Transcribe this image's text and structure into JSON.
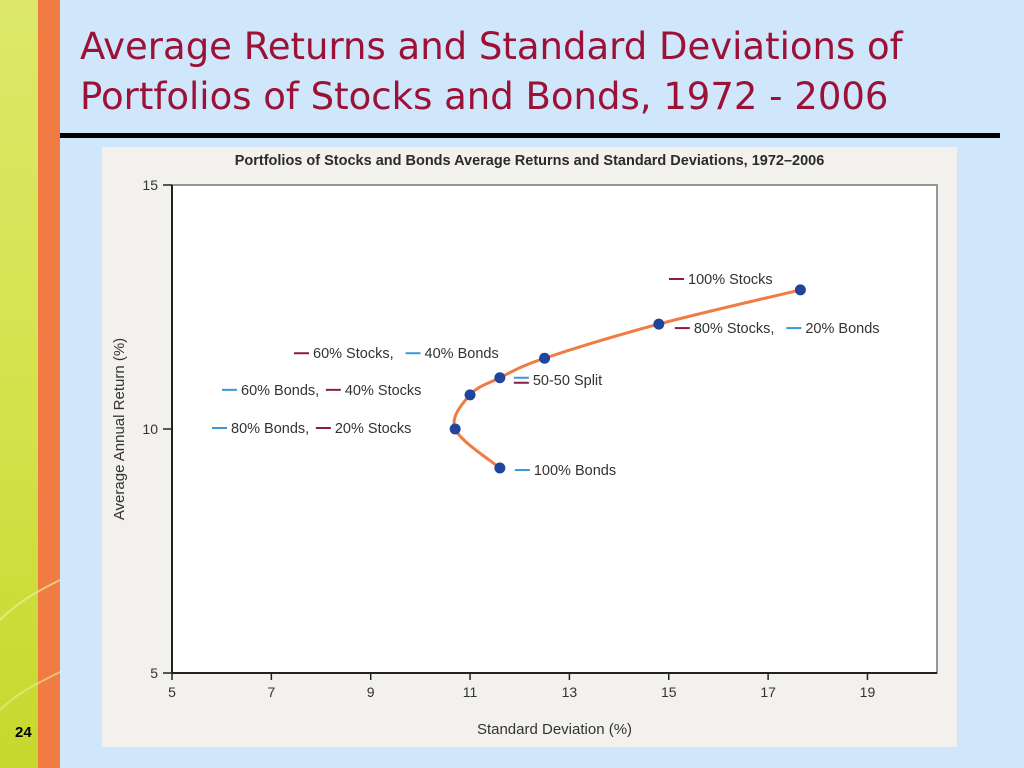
{
  "slide": {
    "title_line1": "Average Returns and Standard Deviations of",
    "title_line2": "Portfolios of Stocks and Bonds, 1972 - 2006",
    "page_number": "24"
  },
  "colors": {
    "title": "#9b1236",
    "curve": "#f07b43",
    "point": "#21459b",
    "stock_mark": "#8e1a4a",
    "bond_mark": "#3c98d4"
  },
  "chart_data": {
    "type": "line",
    "title": "Portfolios of Stocks and Bonds Average Returns and Standard Deviations, 1972–2006",
    "xlabel": "Standard Deviation (%)",
    "ylabel": "Average Annual Return (%)",
    "xlim": [
      5,
      20.4
    ],
    "ylim": [
      5,
      15
    ],
    "xticks": [
      5,
      7,
      9,
      11,
      13,
      15,
      17,
      19
    ],
    "yticks": [
      5,
      10,
      15
    ],
    "grid": false,
    "series": [
      {
        "points": [
          {
            "x": 11.6,
            "y": 9.2,
            "label": [
              "100% Bonds"
            ]
          },
          {
            "x": 10.7,
            "y": 10.0,
            "label": [
              "80% Bonds,",
              "20% Stocks"
            ]
          },
          {
            "x": 11.0,
            "y": 10.7,
            "label": [
              "60% Bonds,",
              "40% Stocks"
            ]
          },
          {
            "x": 11.6,
            "y": 11.05,
            "label": [
              "50-50 Split"
            ]
          },
          {
            "x": 12.5,
            "y": 11.45,
            "label": [
              "60% Stocks,",
              "40% Bonds"
            ]
          },
          {
            "x": 14.8,
            "y": 12.15,
            "label": [
              "80% Stocks,",
              "20% Bonds"
            ]
          },
          {
            "x": 17.65,
            "y": 12.85,
            "label": [
              "100% Stocks"
            ]
          }
        ]
      }
    ]
  }
}
